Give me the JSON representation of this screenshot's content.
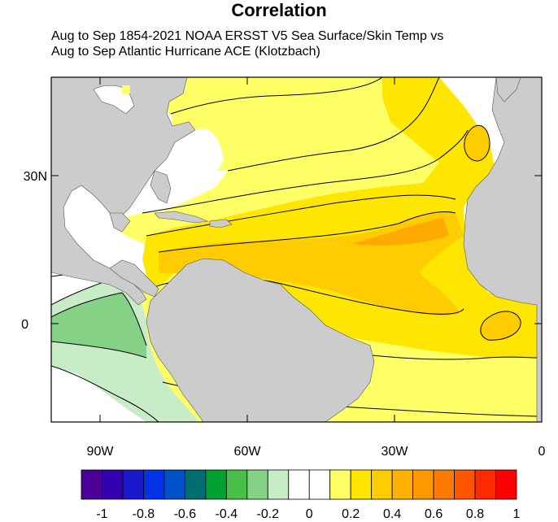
{
  "title": "Correlation",
  "subtitle_line1": "Aug to Sep 1854-2021 NOAA ERSST V5 Sea Surface/Skin Temp vs",
  "subtitle_line2": "Aug to Sep Atlantic Hurricane ACE (Klotzbach)",
  "map": {
    "lon_ticks": [
      "90W",
      "60W",
      "30W",
      "0"
    ],
    "lat_ticks": [
      "30N",
      "0"
    ],
    "lon_range": [
      -100,
      0
    ],
    "lat_range": [
      -20,
      50
    ],
    "colors": {
      "land": "#cccccc",
      "ocean_neutral": "#ffffff",
      "pos_0_2": "#ffff66",
      "pos_0_3": "#ffe600",
      "pos_0_4": "#ffcc00",
      "pos_0_5": "#ffaa00",
      "neg_0_2": "#c7ecc7",
      "neg_0_3": "#85d185",
      "contour": "#000000"
    }
  },
  "colorbar": {
    "labels": [
      "-1",
      "-0.8",
      "-0.6",
      "-0.4",
      "-0.2",
      "0",
      "0.2",
      "0.4",
      "0.6",
      "0.8",
      "1"
    ],
    "colors": [
      "#4b0096",
      "#3300b2",
      "#1a1acc",
      "#0033e6",
      "#0050c8",
      "#006e6e",
      "#00a032",
      "#48bf48",
      "#85d185",
      "#c7ecc7",
      "#ffffff",
      "#ffffff",
      "#ffff66",
      "#ffe600",
      "#ffcc00",
      "#ffb300",
      "#ff9900",
      "#ff7a00",
      "#ff5500",
      "#ff2a00",
      "#ff0000"
    ]
  }
}
